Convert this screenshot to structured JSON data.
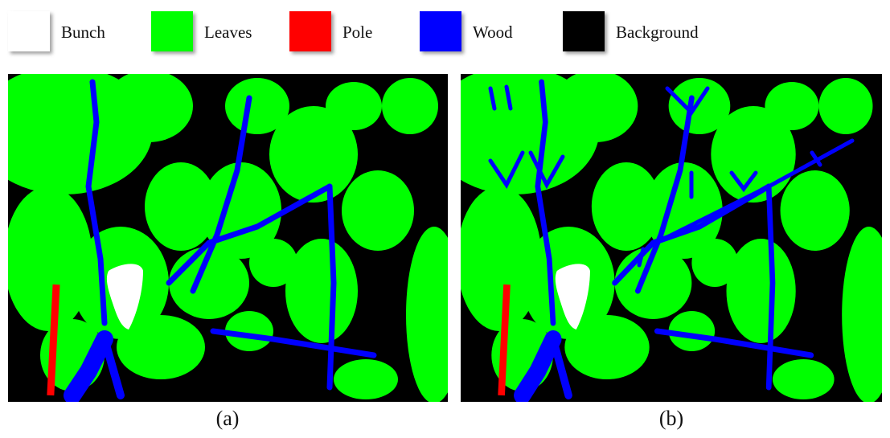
{
  "legend": [
    {
      "label": "Bunch",
      "color": "#ffffff"
    },
    {
      "label": "Leaves",
      "color": "#00ff00"
    },
    {
      "label": "Pole",
      "color": "#ff0000"
    },
    {
      "label": "Wood",
      "color": "#0000ff"
    },
    {
      "label": "Background",
      "color": "#000000"
    }
  ],
  "panels": [
    {
      "caption": "(a)"
    },
    {
      "caption": "(b)"
    }
  ]
}
